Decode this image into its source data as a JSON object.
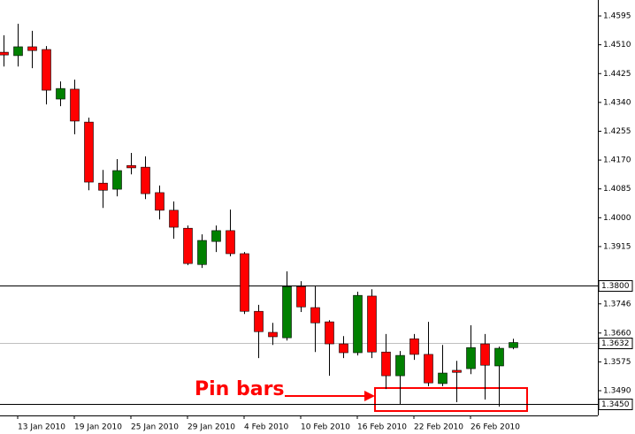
{
  "chart_data": {
    "type": "candlestick",
    "categories": [
      null,
      "13 Jan 2010",
      null,
      null,
      null,
      "19 Jan 2010",
      null,
      null,
      null,
      "25 Jan 2010",
      null,
      null,
      null,
      "29 Jan 2010",
      null,
      null,
      null,
      "4 Feb 2010",
      null,
      null,
      null,
      "10 Feb 2010",
      null,
      null,
      null,
      "16 Feb 2010",
      null,
      null,
      null,
      "22 Feb 2010",
      null,
      null,
      null,
      "26 Feb 2010",
      null,
      null,
      null
    ],
    "open": [
      1.4488,
      1.4478,
      1.4504,
      1.4496,
      1.435,
      1.4379,
      1.4282,
      1.4102,
      1.4084,
      1.4154,
      1.4149,
      1.4074,
      1.4022,
      1.3969,
      1.3862,
      1.393,
      1.3962,
      1.3894,
      1.3724,
      1.3662,
      1.3646,
      1.3797,
      1.3735,
      1.3693,
      1.3628,
      1.3602,
      1.3769,
      1.3604,
      1.3534,
      1.3643,
      1.3597,
      1.3511,
      1.355,
      1.3555,
      1.3628,
      1.3563,
      1.3617
    ],
    "high": [
      1.4538,
      1.4572,
      1.4551,
      1.4506,
      1.4402,
      1.4407,
      1.4295,
      1.4141,
      1.4173,
      1.4191,
      1.4181,
      1.4095,
      1.4048,
      1.3977,
      1.3951,
      1.3977,
      1.4024,
      1.3899,
      1.3743,
      1.369,
      1.3842,
      1.3813,
      1.38,
      1.3698,
      1.3651,
      1.3782,
      1.3789,
      1.3657,
      1.3607,
      1.3657,
      1.3693,
      1.3625,
      1.3578,
      1.3683,
      1.3657,
      1.362,
      1.3643
    ],
    "low": [
      1.4446,
      1.4446,
      1.4441,
      1.4334,
      1.4329,
      1.4246,
      1.4081,
      1.4029,
      1.4063,
      1.4128,
      1.4055,
      1.3995,
      1.3938,
      1.386,
      1.3852,
      1.3899,
      1.3886,
      1.3716,
      1.3586,
      1.3625,
      1.3638,
      1.3722,
      1.3604,
      1.3534,
      1.3586,
      1.3594,
      1.3586,
      1.3495,
      1.3451,
      1.3581,
      1.3503,
      1.3503,
      1.3456,
      1.3539,
      1.3464,
      1.3443,
      1.3612
    ],
    "close": [
      1.448,
      1.4504,
      1.4493,
      1.4376,
      1.4381,
      1.4285,
      1.4105,
      1.4081,
      1.4139,
      1.4147,
      1.4071,
      1.4022,
      1.3972,
      1.3865,
      1.3933,
      1.3962,
      1.3894,
      1.3724,
      1.3664,
      1.3649,
      1.3797,
      1.3737,
      1.369,
      1.3628,
      1.3602,
      1.3771,
      1.3604,
      1.3534,
      1.3594,
      1.3597,
      1.3513,
      1.3542,
      1.3544,
      1.3617,
      1.3565,
      1.3615,
      1.3632
    ],
    "up_color": "#008000",
    "down_color": "#ff0000",
    "ylim": [
      1.3417,
      1.4642
    ],
    "yticks": [
      {
        "value": 1.4595,
        "label": "1.4595"
      },
      {
        "value": 1.451,
        "label": "1.4510"
      },
      {
        "value": 1.4425,
        "label": "1.4425"
      },
      {
        "value": 1.434,
        "label": "1.4340"
      },
      {
        "value": 1.4255,
        "label": "1.4255"
      },
      {
        "value": 1.417,
        "label": "1.4170"
      },
      {
        "value": 1.4085,
        "label": "1.4085"
      },
      {
        "value": 1.4,
        "label": "1.4000"
      },
      {
        "value": 1.3915,
        "label": "1.3915"
      },
      {
        "value": 1.3746,
        "label": "1.3746"
      },
      {
        "value": 1.366,
        "label": "1.3660"
      },
      {
        "value": 1.3575,
        "label": "1.3575"
      },
      {
        "value": 1.349,
        "label": "1.3490"
      }
    ],
    "levels": [
      {
        "value": 1.38,
        "label": "1.3800"
      },
      {
        "value": 1.345,
        "label": "1.3450"
      }
    ],
    "price": {
      "value": 1.3632,
      "label": "1.3632"
    },
    "annotation": "Pin bars"
  }
}
